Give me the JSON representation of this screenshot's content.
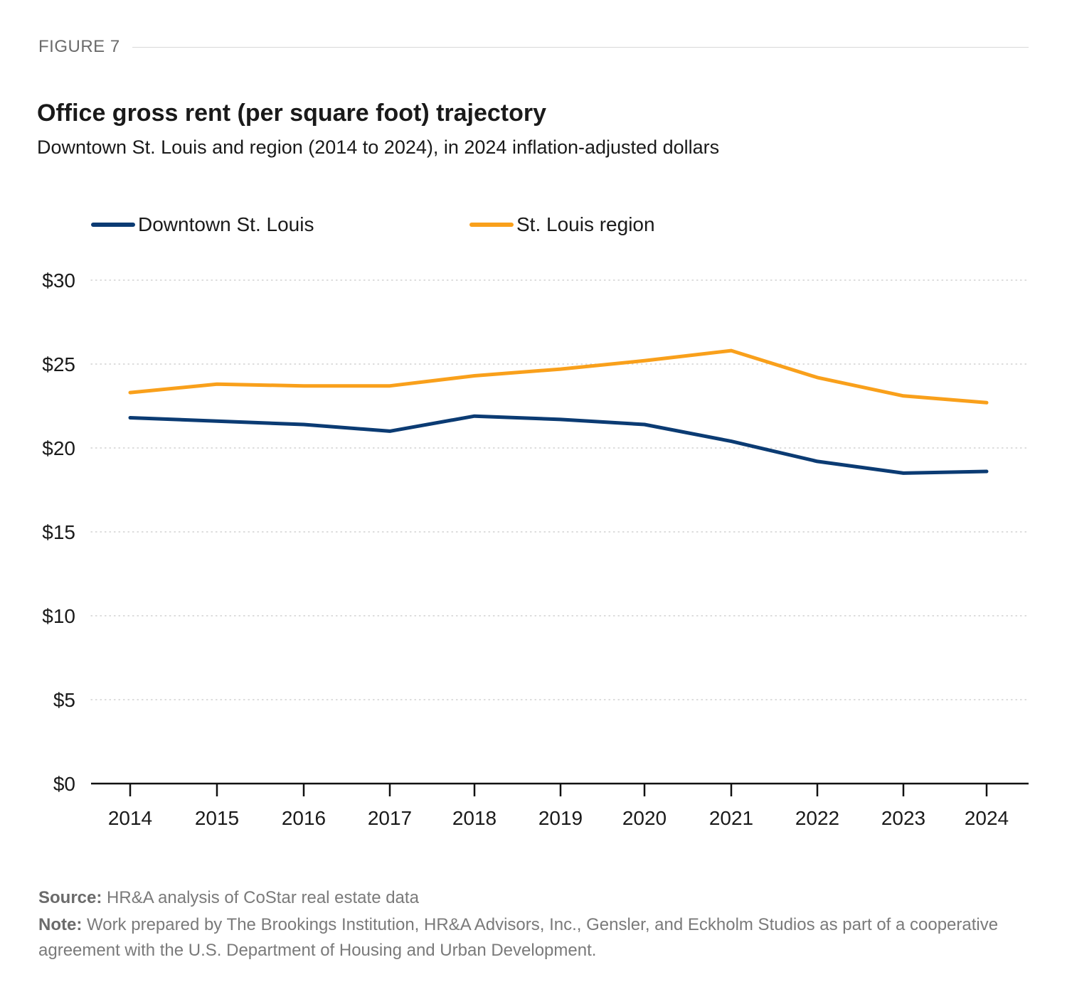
{
  "figure_label": "FIGURE 7",
  "chart_data": {
    "type": "line",
    "title": "Office gross rent (per square foot) trajectory",
    "subtitle": "Downtown St. Louis and region (2014 to 2024), in 2024 inflation-adjusted dollars",
    "xlabel": "",
    "ylabel": "",
    "categories": [
      "2014",
      "2015",
      "2016",
      "2017",
      "2018",
      "2019",
      "2020",
      "2021",
      "2022",
      "2023",
      "2024"
    ],
    "ylim": [
      0,
      30
    ],
    "yticks": [
      0,
      5,
      10,
      15,
      20,
      25,
      30
    ],
    "ytick_labels": [
      "$0",
      "$5",
      "$10",
      "$15",
      "$20",
      "$25",
      "$30"
    ],
    "grid": true,
    "legend_position": "top-left",
    "series": [
      {
        "name": "Downtown St. Louis",
        "color": "#0b3b73",
        "values": [
          21.8,
          21.6,
          21.4,
          21.0,
          21.9,
          21.7,
          21.4,
          20.4,
          19.2,
          18.5,
          18.6
        ]
      },
      {
        "name": "St. Louis region",
        "color": "#f9a01b",
        "values": [
          23.3,
          23.8,
          23.7,
          23.7,
          24.3,
          24.7,
          25.2,
          25.8,
          24.2,
          23.1,
          22.7
        ]
      }
    ]
  },
  "footer": {
    "source_label": "Source:",
    "source_text": " HR&A analysis of CoStar real estate data",
    "note_label": "Note:",
    "note_text": " Work prepared by The Brookings Institution, HR&A Advisors, Inc., Gensler, and Eckholm Studios as part of a cooperative agreement with the U.S. Department of Housing and Urban Development."
  }
}
